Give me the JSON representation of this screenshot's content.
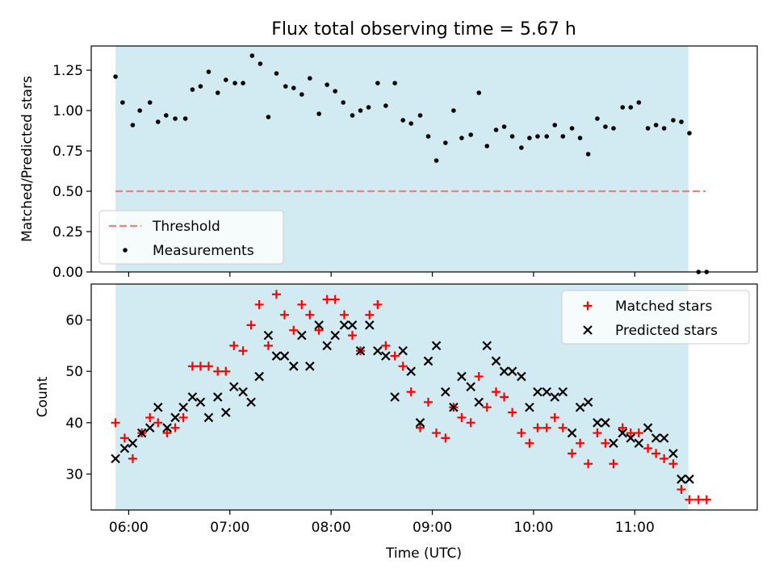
{
  "title": "Flux total observing time = 5.67 h",
  "chart_data": [
    {
      "type": "scatter",
      "ylabel": "Matched/Predicted stars",
      "xlabel": "",
      "x_unit": "hours UTC",
      "xlim": [
        5.63,
        12.21
      ],
      "ylim": [
        0.0,
        1.4
      ],
      "yticks": [
        0.0,
        0.25,
        0.5,
        0.75,
        1.0,
        1.25
      ],
      "ytick_labels": [
        "0.00",
        "0.25",
        "0.50",
        "0.75",
        "1.00",
        "1.25"
      ],
      "xticks": [
        6,
        7,
        8,
        9,
        10,
        11
      ],
      "grid": false,
      "legend_position": "lower-left",
      "observing_span": {
        "start": 5.87,
        "end": 11.53,
        "color": "#add8e6"
      },
      "series": [
        {
          "name": "Threshold",
          "kind": "dashed-line",
          "color": "#f08080",
          "x": [
            5.87,
            11.7
          ],
          "y": [
            0.5,
            0.5
          ]
        },
        {
          "name": "Measurements",
          "kind": "dot",
          "color": "#000000",
          "points": [
            [
              5.87,
              1.21
            ],
            [
              5.94,
              1.05
            ],
            [
              6.04,
              0.91
            ],
            [
              6.11,
              1.0
            ],
            [
              6.21,
              1.05
            ],
            [
              6.29,
              0.93
            ],
            [
              6.37,
              0.97
            ],
            [
              6.46,
              0.95
            ],
            [
              6.56,
              0.95
            ],
            [
              6.63,
              1.13
            ],
            [
              6.71,
              1.15
            ],
            [
              6.79,
              1.24
            ],
            [
              6.88,
              1.11
            ],
            [
              6.96,
              1.19
            ],
            [
              7.05,
              1.17
            ],
            [
              7.13,
              1.17
            ],
            [
              7.22,
              1.34
            ],
            [
              7.3,
              1.29
            ],
            [
              7.38,
              0.96
            ],
            [
              7.46,
              1.23
            ],
            [
              7.55,
              1.15
            ],
            [
              7.63,
              1.14
            ],
            [
              7.71,
              1.1
            ],
            [
              7.79,
              1.2
            ],
            [
              7.88,
              0.98
            ],
            [
              7.96,
              1.16
            ],
            [
              8.04,
              1.12
            ],
            [
              8.12,
              1.05
            ],
            [
              8.21,
              0.97
            ],
            [
              8.29,
              1.0
            ],
            [
              8.37,
              1.02
            ],
            [
              8.46,
              1.17
            ],
            [
              8.54,
              1.03
            ],
            [
              8.63,
              1.17
            ],
            [
              8.71,
              0.94
            ],
            [
              8.79,
              0.92
            ],
            [
              8.88,
              0.97
            ],
            [
              8.96,
              0.84
            ],
            [
              9.04,
              0.69
            ],
            [
              9.13,
              0.8
            ],
            [
              9.21,
              1.0
            ],
            [
              9.29,
              0.83
            ],
            [
              9.38,
              0.85
            ],
            [
              9.46,
              1.11
            ],
            [
              9.54,
              0.78
            ],
            [
              9.63,
              0.88
            ],
            [
              9.71,
              0.9
            ],
            [
              9.79,
              0.84
            ],
            [
              9.88,
              0.77
            ],
            [
              9.96,
              0.83
            ],
            [
              10.04,
              0.84
            ],
            [
              10.13,
              0.84
            ],
            [
              10.21,
              0.91
            ],
            [
              10.29,
              0.84
            ],
            [
              10.38,
              0.89
            ],
            [
              10.46,
              0.83
            ],
            [
              10.54,
              0.73
            ],
            [
              10.63,
              0.95
            ],
            [
              10.71,
              0.9
            ],
            [
              10.79,
              0.89
            ],
            [
              10.88,
              1.02
            ],
            [
              10.96,
              1.02
            ],
            [
              11.04,
              1.05
            ],
            [
              11.13,
              0.89
            ],
            [
              11.21,
              0.91
            ],
            [
              11.29,
              0.89
            ],
            [
              11.38,
              0.94
            ],
            [
              11.46,
              0.93
            ],
            [
              11.54,
              0.86
            ],
            [
              11.63,
              0.0
            ],
            [
              11.71,
              0.0
            ]
          ]
        }
      ]
    },
    {
      "type": "scatter",
      "xlabel": "Time (UTC)",
      "ylabel": "Count",
      "x_unit": "hours UTC",
      "xlim": [
        5.63,
        12.21
      ],
      "ylim": [
        23,
        67
      ],
      "yticks": [
        30,
        40,
        50,
        60
      ],
      "ytick_labels": [
        "30",
        "40",
        "50",
        "60"
      ],
      "xticks": [
        6,
        7,
        8,
        9,
        10,
        11
      ],
      "xtick_labels": [
        "06:00",
        "07:00",
        "08:00",
        "09:00",
        "10:00",
        "11:00"
      ],
      "grid": false,
      "legend_position": "top-right",
      "observing_span": {
        "start": 5.87,
        "end": 11.53,
        "color": "#add8e6"
      },
      "series": [
        {
          "name": "Matched stars",
          "kind": "plus",
          "color": "#ff0000",
          "points": [
            [
              5.87,
              40
            ],
            [
              5.96,
              37
            ],
            [
              6.04,
              33
            ],
            [
              6.13,
              38
            ],
            [
              6.21,
              41
            ],
            [
              6.29,
              40
            ],
            [
              6.38,
              38
            ],
            [
              6.46,
              39
            ],
            [
              6.54,
              41
            ],
            [
              6.63,
              51
            ],
            [
              6.71,
              51
            ],
            [
              6.79,
              51
            ],
            [
              6.88,
              50
            ],
            [
              6.96,
              50
            ],
            [
              7.04,
              55
            ],
            [
              7.13,
              54
            ],
            [
              7.21,
              59
            ],
            [
              7.29,
              63
            ],
            [
              7.38,
              55
            ],
            [
              7.46,
              65
            ],
            [
              7.54,
              61
            ],
            [
              7.63,
              58
            ],
            [
              7.71,
              63
            ],
            [
              7.79,
              61
            ],
            [
              7.88,
              58
            ],
            [
              7.96,
              64
            ],
            [
              8.04,
              64
            ],
            [
              8.13,
              61
            ],
            [
              8.21,
              57
            ],
            [
              8.29,
              54
            ],
            [
              8.38,
              61
            ],
            [
              8.46,
              63
            ],
            [
              8.54,
              55
            ],
            [
              8.63,
              53
            ],
            [
              8.71,
              51
            ],
            [
              8.79,
              46
            ],
            [
              8.88,
              39
            ],
            [
              8.96,
              44
            ],
            [
              9.04,
              38
            ],
            [
              9.13,
              37
            ],
            [
              9.21,
              43
            ],
            [
              9.29,
              41
            ],
            [
              9.38,
              40
            ],
            [
              9.46,
              49
            ],
            [
              9.54,
              43
            ],
            [
              9.63,
              46
            ],
            [
              9.71,
              45
            ],
            [
              9.79,
              42
            ],
            [
              9.88,
              38
            ],
            [
              9.96,
              36
            ],
            [
              10.04,
              39
            ],
            [
              10.13,
              39
            ],
            [
              10.21,
              41
            ],
            [
              10.29,
              39
            ],
            [
              10.38,
              34
            ],
            [
              10.46,
              36
            ],
            [
              10.54,
              32
            ],
            [
              10.63,
              38
            ],
            [
              10.71,
              36
            ],
            [
              10.79,
              32
            ],
            [
              10.88,
              39
            ],
            [
              10.96,
              38
            ],
            [
              11.04,
              38
            ],
            [
              11.13,
              35
            ],
            [
              11.21,
              34
            ],
            [
              11.29,
              33
            ],
            [
              11.38,
              32
            ],
            [
              11.46,
              27
            ],
            [
              11.54,
              25
            ],
            [
              11.63,
              25
            ],
            [
              11.71,
              25
            ]
          ]
        },
        {
          "name": "Predicted stars",
          "kind": "x",
          "color": "#000000",
          "points": [
            [
              5.87,
              33
            ],
            [
              5.96,
              35
            ],
            [
              6.04,
              36
            ],
            [
              6.13,
              38
            ],
            [
              6.21,
              39
            ],
            [
              6.29,
              43
            ],
            [
              6.38,
              39
            ],
            [
              6.46,
              41
            ],
            [
              6.54,
              43
            ],
            [
              6.63,
              45
            ],
            [
              6.71,
              44
            ],
            [
              6.79,
              41
            ],
            [
              6.88,
              45
            ],
            [
              6.96,
              42
            ],
            [
              7.04,
              47
            ],
            [
              7.13,
              46
            ],
            [
              7.21,
              44
            ],
            [
              7.29,
              49
            ],
            [
              7.38,
              57
            ],
            [
              7.46,
              53
            ],
            [
              7.54,
              53
            ],
            [
              7.63,
              51
            ],
            [
              7.71,
              57
            ],
            [
              7.79,
              51
            ],
            [
              7.88,
              59
            ],
            [
              7.96,
              55
            ],
            [
              8.04,
              57
            ],
            [
              8.13,
              59
            ],
            [
              8.21,
              59
            ],
            [
              8.29,
              54
            ],
            [
              8.38,
              59
            ],
            [
              8.46,
              54
            ],
            [
              8.54,
              53
            ],
            [
              8.63,
              45
            ],
            [
              8.71,
              54
            ],
            [
              8.79,
              50
            ],
            [
              8.88,
              40
            ],
            [
              8.96,
              52
            ],
            [
              9.04,
              55
            ],
            [
              9.13,
              46
            ],
            [
              9.21,
              43
            ],
            [
              9.29,
              49
            ],
            [
              9.38,
              47
            ],
            [
              9.46,
              44
            ],
            [
              9.54,
              55
            ],
            [
              9.63,
              52
            ],
            [
              9.71,
              50
            ],
            [
              9.79,
              50
            ],
            [
              9.88,
              49
            ],
            [
              9.96,
              43
            ],
            [
              10.04,
              46
            ],
            [
              10.13,
              46
            ],
            [
              10.21,
              45
            ],
            [
              10.29,
              46
            ],
            [
              10.38,
              38
            ],
            [
              10.46,
              43
            ],
            [
              10.54,
              44
            ],
            [
              10.63,
              40
            ],
            [
              10.71,
              40
            ],
            [
              10.79,
              36
            ],
            [
              10.88,
              38
            ],
            [
              10.96,
              37
            ],
            [
              11.04,
              36
            ],
            [
              11.13,
              39
            ],
            [
              11.21,
              37
            ],
            [
              11.29,
              37
            ],
            [
              11.38,
              34
            ],
            [
              11.46,
              29
            ],
            [
              11.54,
              29
            ]
          ]
        }
      ]
    }
  ]
}
